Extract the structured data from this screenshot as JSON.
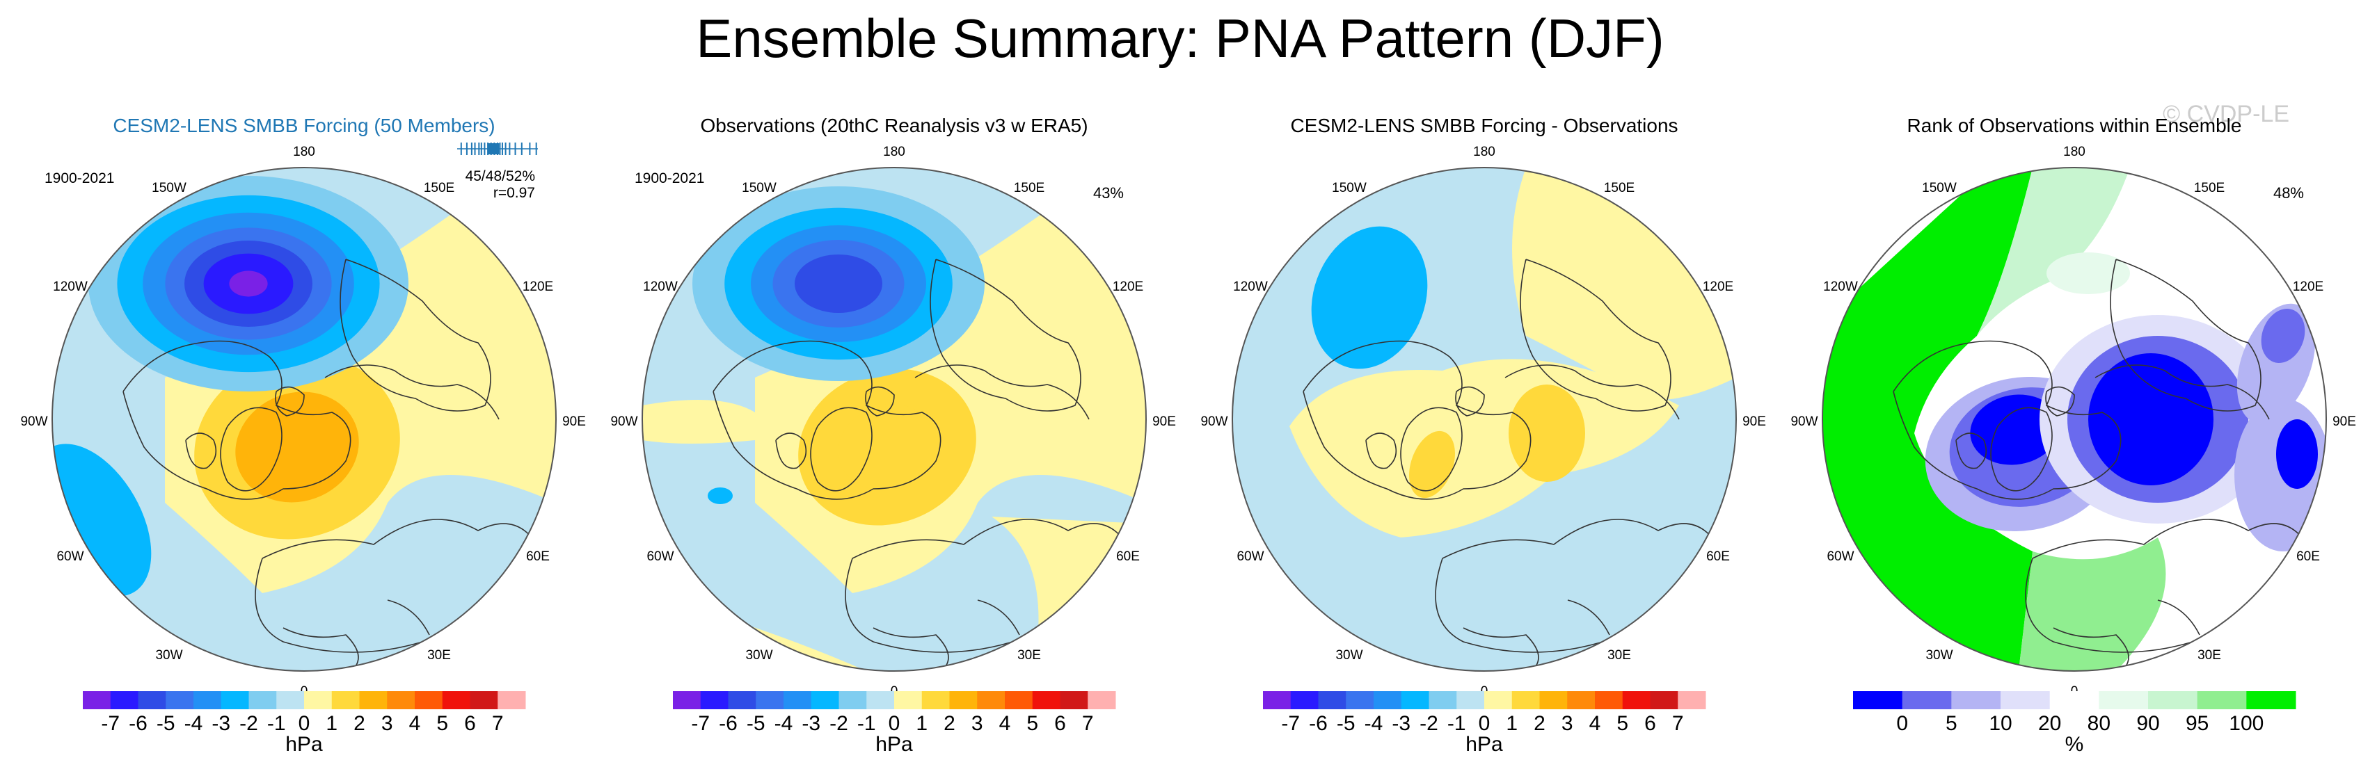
{
  "title": "Ensemble Summary: PNA Pattern (DJF)",
  "watermark": "© CVDP-LE",
  "colors": {
    "diverging": [
      "#7a21e6",
      "#2a1aff",
      "#2f4ce6",
      "#3a74ef",
      "#2390f5",
      "#05b7ff",
      "#7fcdf0",
      "#bde3f2",
      "#fff7a3",
      "#ffd93b",
      "#ffb40a",
      "#ff8a0a",
      "#ff5a06",
      "#f0120b",
      "#d11818",
      "#ffb0b0"
    ],
    "rank": [
      "#0000ff",
      "#6a6aee",
      "#b4b4f4",
      "#e0e0fa",
      "#ffffff",
      "#e6faec",
      "#c8f5d0",
      "#90ee90",
      "#00ee00"
    ],
    "map_land": "#333333",
    "title_blue": "#1f77b4"
  },
  "panels": [
    {
      "title": "CESM2-LENS SMBB Forcing (50 Members)",
      "title_style": "blue",
      "period": "1900-2021",
      "stats_line1": "45/48/52%",
      "stats_line2": "r=0.97",
      "percent_label": "",
      "spread_ticks": [
        0.05,
        0.12,
        0.18,
        0.22,
        0.27,
        0.3,
        0.34,
        0.38,
        0.42,
        0.46,
        0.5,
        0.53,
        0.56,
        0.6,
        0.65,
        0.72,
        0.8,
        0.9,
        0.98
      ],
      "colorbar": "diverging",
      "field": "ensemble"
    },
    {
      "title": "Observations (20thC Reanalysis v3 w ERA5)",
      "title_style": "black",
      "period": "1900-2021",
      "stats_line1": "",
      "stats_line2": "",
      "percent_label": "43%",
      "spread_ticks": [],
      "colorbar": "diverging",
      "field": "observations"
    },
    {
      "title": "CESM2-LENS SMBB Forcing - Observations",
      "title_style": "black",
      "period": "",
      "stats_line1": "",
      "stats_line2": "",
      "percent_label": "",
      "spread_ticks": [],
      "colorbar": "diverging",
      "field": "difference"
    },
    {
      "title": "Rank of Observations within Ensemble",
      "title_style": "black",
      "period": "",
      "stats_line1": "",
      "stats_line2": "",
      "percent_label": "48%",
      "spread_ticks": [],
      "colorbar": "rank",
      "field": "rank"
    }
  ],
  "longitude_labels": [
    "180",
    "150E",
    "120E",
    "90E",
    "60E",
    "30E",
    "0",
    "30W",
    "60W",
    "90W",
    "120W",
    "150W"
  ],
  "colorbars": {
    "diverging": {
      "tick_labels": [
        "-7",
        "-6",
        "-5",
        "-4",
        "-3",
        "-2",
        "-1",
        "0",
        "1",
        "2",
        "3",
        "4",
        "5",
        "6",
        "7"
      ],
      "units": "hPa"
    },
    "rank": {
      "tick_labels": [
        "0",
        "5",
        "10",
        "20",
        "80",
        "90",
        "95",
        "100"
      ],
      "units": "%"
    }
  },
  "chart_data": [
    {
      "type": "heatmap",
      "title": "CESM2-LENS SMBB Forcing (50 Members)",
      "projection": "north polar stereographic",
      "period": "1900-2021",
      "units": "hPa",
      "levels": [
        -7,
        -6,
        -5,
        -4,
        -3,
        -2,
        -1,
        0,
        1,
        2,
        3,
        4,
        5,
        6,
        7
      ],
      "annotations": [
        "45/48/52%",
        "r=0.97"
      ],
      "features": [
        {
          "name": "North Pacific low",
          "value": -6
        },
        {
          "name": "North America high",
          "value": 3
        }
      ]
    },
    {
      "type": "heatmap",
      "title": "Observations (20thC Reanalysis v3 w ERA5)",
      "projection": "north polar stereographic",
      "period": "1900-2021",
      "units": "hPa",
      "levels": [
        -7,
        -6,
        -5,
        -4,
        -3,
        -2,
        -1,
        0,
        1,
        2,
        3,
        4,
        5,
        6,
        7
      ],
      "annotations": [
        "43%"
      ],
      "features": [
        {
          "name": "North Pacific low",
          "value": -5
        },
        {
          "name": "North America high",
          "value": 2
        }
      ]
    },
    {
      "type": "heatmap",
      "title": "CESM2-LENS SMBB Forcing - Observations",
      "projection": "north polar stereographic",
      "units": "hPa",
      "levels": [
        -7,
        -6,
        -5,
        -4,
        -3,
        -2,
        -1,
        0,
        1,
        2,
        3,
        4,
        5,
        6,
        7
      ],
      "features": [
        {
          "name": "North Pacific",
          "value": -1
        },
        {
          "name": "Arctic",
          "value": 1
        }
      ]
    },
    {
      "type": "heatmap",
      "title": "Rank of Observations within Ensemble",
      "projection": "north polar stereographic",
      "units": "%",
      "levels": [
        0,
        5,
        10,
        20,
        80,
        90,
        95,
        100
      ],
      "annotations": [
        "48%"
      ]
    }
  ]
}
